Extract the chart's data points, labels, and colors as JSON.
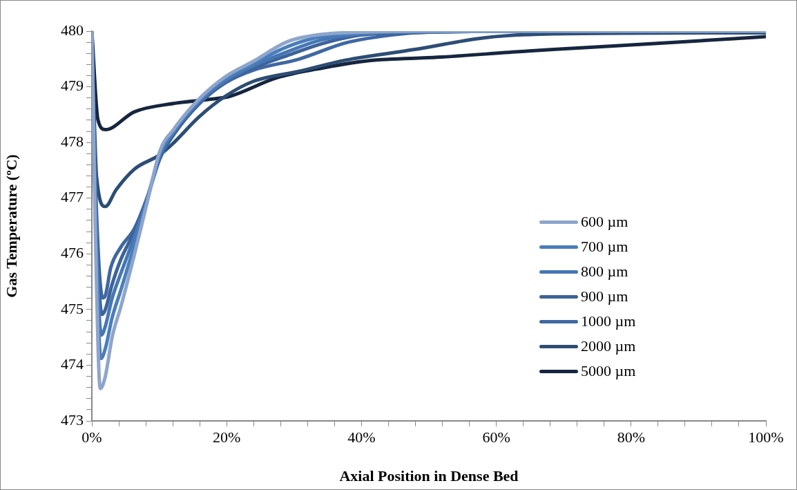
{
  "chart_data": {
    "type": "line",
    "xlabel": "Axial Position in Dense Bed",
    "ylabel": "Gas Temperature (ºC)",
    "xlim": [
      0,
      100
    ],
    "ylim": [
      473,
      480
    ],
    "xticks": [
      {
        "value": 0,
        "label": "0%"
      },
      {
        "value": 4,
        "label": null
      },
      {
        "value": 8,
        "label": null
      },
      {
        "value": 12,
        "label": null
      },
      {
        "value": 16,
        "label": null
      },
      {
        "value": 20,
        "label": "20%"
      },
      {
        "value": 24,
        "label": null
      },
      {
        "value": 28,
        "label": null
      },
      {
        "value": 32,
        "label": null
      },
      {
        "value": 36,
        "label": null
      },
      {
        "value": 40,
        "label": "40%"
      },
      {
        "value": 44,
        "label": null
      },
      {
        "value": 48,
        "label": null
      },
      {
        "value": 52,
        "label": null
      },
      {
        "value": 56,
        "label": null
      },
      {
        "value": 60,
        "label": "60%"
      },
      {
        "value": 64,
        "label": null
      },
      {
        "value": 68,
        "label": null
      },
      {
        "value": 72,
        "label": null
      },
      {
        "value": 76,
        "label": null
      },
      {
        "value": 80,
        "label": "80%"
      },
      {
        "value": 84,
        "label": null
      },
      {
        "value": 88,
        "label": null
      },
      {
        "value": 92,
        "label": null
      },
      {
        "value": 96,
        "label": null
      },
      {
        "value": 100,
        "label": "100%"
      }
    ],
    "yticks": [
      473,
      {
        "value": 473.2,
        "label": null
      },
      {
        "value": 473.4,
        "label": null
      },
      {
        "value": 473.6,
        "label": null
      },
      {
        "value": 473.8,
        "label": null
      },
      474,
      {
        "value": 474.2,
        "label": null
      },
      {
        "value": 474.4,
        "label": null
      },
      {
        "value": 474.6,
        "label": null
      },
      {
        "value": 474.8,
        "label": null
      },
      475,
      {
        "value": 475.2,
        "label": null
      },
      {
        "value": 475.4,
        "label": null
      },
      {
        "value": 475.6,
        "label": null
      },
      {
        "value": 475.8,
        "label": null
      },
      476,
      {
        "value": 476.2,
        "label": null
      },
      {
        "value": 476.4,
        "label": null
      },
      {
        "value": 476.6,
        "label": null
      },
      {
        "value": 476.8,
        "label": null
      },
      477,
      {
        "value": 477.2,
        "label": null
      },
      {
        "value": 477.4,
        "label": null
      },
      {
        "value": 477.6,
        "label": null
      },
      {
        "value": 477.8,
        "label": null
      },
      478,
      {
        "value": 478.2,
        "label": null
      },
      {
        "value": 478.4,
        "label": null
      },
      {
        "value": 478.6,
        "label": null
      },
      {
        "value": 478.8,
        "label": null
      },
      479,
      {
        "value": 479.2,
        "label": null
      },
      {
        "value": 479.4,
        "label": null
      },
      {
        "value": 479.6,
        "label": null
      },
      {
        "value": 479.8,
        "label": null
      },
      480
    ],
    "grid": false,
    "legend": "right",
    "marker": "none",
    "line_style": "solid",
    "series": [
      {
        "name": "600 µm",
        "color": "#8ea5cc",
        "x": [
          0,
          0.5,
          1.25,
          2,
          3,
          4.3,
          6.3,
          8.2,
          10.1,
          12.1,
          15.9,
          19.8,
          24,
          29,
          34,
          40,
          50,
          70,
          100
        ],
        "values": [
          480,
          476.5,
          473.58,
          473.8,
          474.5,
          475.05,
          475.98,
          476.92,
          477.85,
          478.23,
          478.78,
          479.18,
          479.46,
          479.81,
          479.94,
          479.98,
          480,
          480,
          480
        ]
      },
      {
        "name": "700 µm",
        "color": "#4a7ebb",
        "x": [
          0,
          0.5,
          1.35,
          2,
          3,
          4.3,
          6.3,
          8.2,
          10.1,
          12.1,
          15.9,
          19.8,
          24,
          29,
          34,
          40,
          50,
          70,
          100
        ],
        "values": [
          480,
          476.8,
          474.12,
          474.3,
          474.85,
          475.35,
          476.15,
          476.95,
          477.8,
          478.2,
          478.75,
          479.14,
          479.42,
          479.72,
          479.9,
          479.97,
          480,
          480,
          480
        ]
      },
      {
        "name": "800 µm",
        "color": "#4677b5",
        "x": [
          0,
          0.5,
          1.4,
          2,
          3,
          4.3,
          6.3,
          8.2,
          10.1,
          12.1,
          15.9,
          19.8,
          24,
          29,
          34,
          40,
          50,
          70,
          100
        ],
        "values": [
          480,
          477,
          474.54,
          474.7,
          475.2,
          475.65,
          476.3,
          476.98,
          477.77,
          478.18,
          478.73,
          479.11,
          479.38,
          479.63,
          479.84,
          479.95,
          479.99,
          480,
          480
        ]
      },
      {
        "name": "900 µm",
        "color": "#3d6399",
        "x": [
          0,
          0.5,
          1.5,
          2,
          3,
          4.3,
          6.3,
          8.2,
          10.1,
          12.1,
          15.9,
          19.8,
          24,
          29,
          34,
          40,
          50,
          70,
          100
        ],
        "values": [
          480,
          477.2,
          474.91,
          475,
          475.45,
          475.9,
          476.4,
          477,
          477.74,
          478.15,
          478.71,
          479.09,
          479.34,
          479.56,
          479.77,
          479.93,
          479.98,
          480,
          480
        ]
      },
      {
        "name": "1000 µm",
        "color": "#3f68a3",
        "x": [
          0,
          0.5,
          1.6,
          2,
          2.8,
          4.3,
          6.3,
          8.2,
          10.1,
          12.1,
          15.9,
          19.8,
          24,
          30.8,
          37.7,
          44.5,
          50,
          70,
          100
        ],
        "values": [
          480,
          477.4,
          475.21,
          475.25,
          475.75,
          476.12,
          476.45,
          477.01,
          477.71,
          478.13,
          478.69,
          479.07,
          479.3,
          479.5,
          479.79,
          479.93,
          479.98,
          480,
          480
        ]
      },
      {
        "name": "2000 µm",
        "color": "#2c4d75",
        "x": [
          0,
          0.7,
          2,
          3.6,
          6.3,
          10.1,
          12.1,
          15.9,
          19.8,
          24,
          30.8,
          37.7,
          47.9,
          58.2,
          68.5,
          100
        ],
        "values": [
          480,
          477.38,
          476.85,
          477.15,
          477.52,
          477.78,
          477.99,
          478.46,
          478.83,
          479.1,
          479.28,
          479.48,
          479.67,
          479.88,
          479.95,
          479.97
        ]
      },
      {
        "name": "5000 µm",
        "color": "#17263f",
        "x": [
          0,
          0.9,
          2,
          6.3,
          12.1,
          17.9,
          20.5,
          27.4,
          34.3,
          41.1,
          51.3,
          63.3,
          68.5,
          83.9,
          100
        ],
        "values": [
          480,
          478.41,
          478.23,
          478.55,
          478.7,
          478.78,
          478.83,
          479.16,
          479.34,
          479.47,
          479.53,
          479.63,
          479.67,
          479.78,
          479.9
        ]
      }
    ]
  }
}
